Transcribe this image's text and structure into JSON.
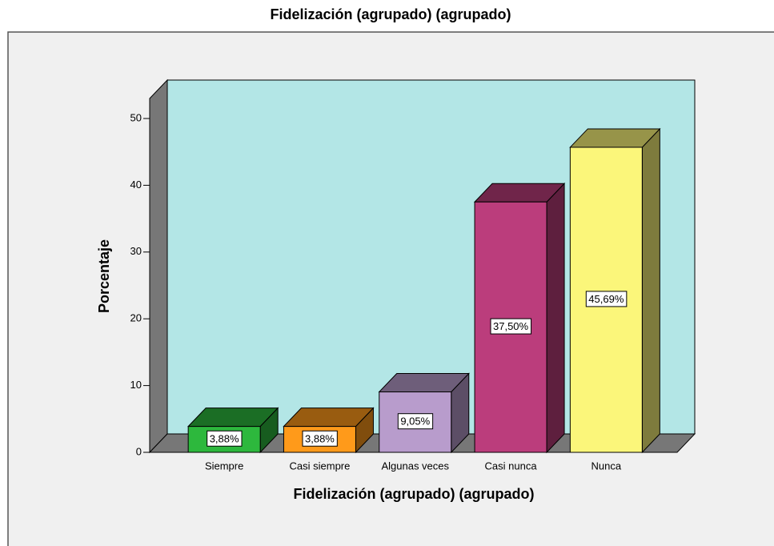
{
  "chart_data": {
    "type": "bar3d",
    "title": "Fidelización (agrupado) (agrupado)",
    "x_label": "Fidelización (agrupado) (agrupado)",
    "y_label": "Porcentaje",
    "categories": [
      "Siempre",
      "Casi siempre",
      "Algunas veces",
      "Casi nunca",
      "Nunca"
    ],
    "values": [
      3.88,
      3.88,
      9.05,
      37.5,
      45.69
    ],
    "value_labels": [
      "3,88%",
      "3,88%",
      "9,05%",
      "37,50%",
      "45,69%"
    ],
    "colors": [
      "#2db83d",
      "#ff9a1a",
      "#b89ccc",
      "#bb3d7c",
      "#fbf67a"
    ],
    "ylim": [
      0,
      53
    ],
    "yticks": [
      0,
      10,
      20,
      30,
      40,
      50
    ]
  }
}
